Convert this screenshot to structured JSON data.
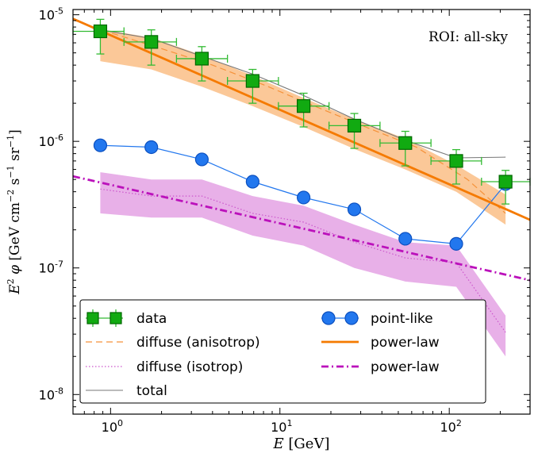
{
  "chart_data": {
    "type": "line",
    "xlabel": "E [GeV]",
    "ylabel": "E² φ [GeV cm⁻² s⁻¹ sr⁻¹]",
    "xscale": "log",
    "yscale": "log",
    "xlim": [
      0.6,
      300
    ],
    "ylim": [
      7e-09,
      1.1e-05
    ],
    "x_tick_labels": [
      "10^0",
      "10^1",
      "10^2"
    ],
    "y_tick_labels": [
      "10^-8",
      "10^-7",
      "10^-6",
      "10^-5"
    ],
    "annotation": "ROI: all-sky",
    "legend_position": "bottom",
    "series": [
      {
        "name": "data",
        "style": "square markers with error bars",
        "color": "#11aa11",
        "error_color": "#33bb33",
        "points": [
          {
            "x": 0.87,
            "y": 7.4e-06,
            "y_lo": 4.9e-06,
            "y_hi": 9.2e-06,
            "x_lo": 0.6,
            "x_hi": 1.2
          },
          {
            "x": 1.74,
            "y": 6.1e-06,
            "y_lo": 4e-06,
            "y_hi": 7.6e-06,
            "x_lo": 1.2,
            "x_hi": 2.45
          },
          {
            "x": 3.46,
            "y": 4.5e-06,
            "y_lo": 3e-06,
            "y_hi": 5.6e-06,
            "x_lo": 2.45,
            "x_hi": 4.9
          },
          {
            "x": 6.9,
            "y": 3e-06,
            "y_lo": 2e-06,
            "y_hi": 3.7e-06,
            "x_lo": 4.9,
            "x_hi": 9.8
          },
          {
            "x": 13.8,
            "y": 1.9e-06,
            "y_lo": 1.3e-06,
            "y_hi": 2.4e-06,
            "x_lo": 9.8,
            "x_hi": 19.5
          },
          {
            "x": 27.5,
            "y": 1.33e-06,
            "y_lo": 8.8e-07,
            "y_hi": 1.66e-06,
            "x_lo": 19.5,
            "x_hi": 39
          },
          {
            "x": 55,
            "y": 9.7e-07,
            "y_lo": 6.4e-07,
            "y_hi": 1.2e-06,
            "x_lo": 39,
            "x_hi": 78
          },
          {
            "x": 110,
            "y": 7e-07,
            "y_lo": 4.6e-07,
            "y_hi": 8.6e-07,
            "x_lo": 78,
            "x_hi": 155
          },
          {
            "x": 215,
            "y": 4.8e-07,
            "y_lo": 3.2e-07,
            "y_hi": 5.9e-07,
            "x_lo": 155,
            "x_hi": 300
          }
        ]
      },
      {
        "name": "diffuse (anisotrop)",
        "style": "dashed",
        "color": "#f5923a",
        "x": [
          0.6,
          1,
          2,
          4,
          8,
          16,
          32,
          64,
          128,
          215
        ],
        "y": [
          9.1e-06,
          7.2e-06,
          5.4e-06,
          4e-06,
          2.8e-06,
          1.9e-06,
          1.3e-06,
          9e-07,
          5e-07,
          2.7e-07
        ]
      },
      {
        "name": "diffuse (isotrop)",
        "style": "dotted",
        "color": "#cc55cc",
        "x": [
          0.87,
          1.74,
          3.46,
          6.9,
          13.8,
          27.5,
          55,
          110,
          215
        ],
        "y": [
          4.2e-07,
          3.7e-07,
          3.7e-07,
          2.7e-07,
          2.3e-07,
          1.6e-07,
          1.2e-07,
          1.1e-07,
          3.1e-08
        ]
      },
      {
        "name": "total",
        "style": "solid thin",
        "color": "#777777",
        "x": [
          0.87,
          1.74,
          3.46,
          6.9,
          13.8,
          27.5,
          55,
          110,
          215
        ],
        "y": [
          7.6e-06,
          6.5e-06,
          4.7e-06,
          3.4e-06,
          2.3e-06,
          1.5e-06,
          1.02e-06,
          7.4e-07,
          7.5e-07
        ]
      },
      {
        "name": "point-like",
        "style": "circle markers with line",
        "color": "#2277ee",
        "x": [
          0.87,
          1.74,
          3.46,
          6.9,
          13.8,
          27.5,
          55,
          110,
          215
        ],
        "y": [
          9.3e-07,
          9e-07,
          7.2e-07,
          4.8e-07,
          3.6e-07,
          2.9e-07,
          1.7e-07,
          1.55e-07,
          4.6e-07
        ]
      },
      {
        "name": "power-law",
        "style": "solid thick",
        "color": "#f57a00",
        "x": [
          0.6,
          300
        ],
        "y": [
          9.3e-06,
          2.4e-07
        ]
      },
      {
        "name": "power-law",
        "style": "dash-dot thick",
        "color": "#bb11bb",
        "x": [
          0.6,
          300
        ],
        "y": [
          5.3e-07,
          8e-08
        ]
      }
    ],
    "bands": [
      {
        "series": "diffuse (anisotrop)",
        "color": "#fbc898",
        "x": [
          0.87,
          1.74,
          3.46,
          6.9,
          13.8,
          27.5,
          55,
          110,
          215
        ],
        "lower": [
          4.3e-06,
          3.7e-06,
          2.7e-06,
          1.9e-06,
          1.3e-06,
          8.7e-07,
          6e-07,
          4e-07,
          2.2e-07
        ],
        "upper": [
          7.7e-06,
          6.6e-06,
          4.8e-06,
          3.3e-06,
          2.2e-06,
          1.5e-06,
          1.05e-06,
          6.5e-07,
          3.8e-07
        ]
      },
      {
        "series": "diffuse (isotrop)",
        "color": "#e8b0e8",
        "x": [
          0.87,
          1.74,
          3.46,
          6.9,
          13.8,
          27.5,
          55,
          110,
          215
        ],
        "lower": [
          2.7e-07,
          2.5e-07,
          2.5e-07,
          1.8e-07,
          1.5e-07,
          1e-07,
          7.8e-08,
          7.1e-08,
          2e-08
        ],
        "upper": [
          5.7e-07,
          5e-07,
          5e-07,
          3.7e-07,
          3.1e-07,
          2.2e-07,
          1.6e-07,
          1.5e-07,
          4.2e-08
        ]
      }
    ],
    "legend": {
      "col1": [
        "data",
        "diffuse (anisotrop)",
        "diffuse (isotrop)",
        "total"
      ],
      "col2": [
        "point-like",
        "power-law",
        "power-law"
      ]
    }
  }
}
